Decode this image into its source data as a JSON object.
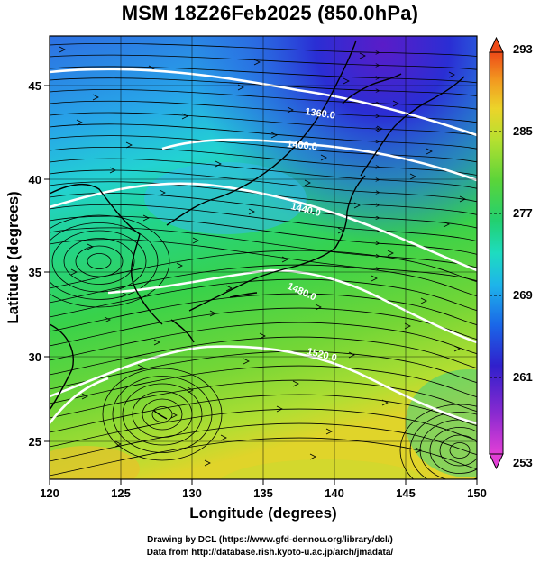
{
  "title": "MSM 18Z26Feb2025 (850.0hPa)",
  "map": {
    "type": "wind streamlines over temperature shading with geopotential height contours",
    "lon_range": [
      120,
      150
    ],
    "lat_range": [
      22.5,
      47.5
    ],
    "x_ticks": [
      "120",
      "125",
      "130",
      "135",
      "140",
      "145",
      "150"
    ],
    "y_ticks": [
      "25",
      "30",
      "35",
      "40",
      "45"
    ],
    "xlabel": "Longitude (degrees)",
    "ylabel": "Latitude  (degrees)",
    "grid": true
  },
  "colorbar": {
    "ticks": [
      "253",
      "261",
      "269",
      "277",
      "285",
      "293"
    ],
    "min": 253,
    "max": 293,
    "colors": [
      "#d94fd6",
      "#7a2bd0",
      "#3322cc",
      "#1f5ce6",
      "#22a8e8",
      "#22dcc8",
      "#22d27a",
      "#4fd63a",
      "#a6e030",
      "#e6d628",
      "#f0a020",
      "#ee5a18"
    ]
  },
  "contours": {
    "labels": [
      "1360.0",
      "1400.0",
      "1440.0",
      "1480.0",
      "1520.0"
    ]
  },
  "credits": {
    "line1": "Drawing by DCL (https://www.gfd-dennou.org/library/dcl/)",
    "line2": "Data from http://database.rish.kyoto-u.ac.jp/arch/jmadata/"
  }
}
